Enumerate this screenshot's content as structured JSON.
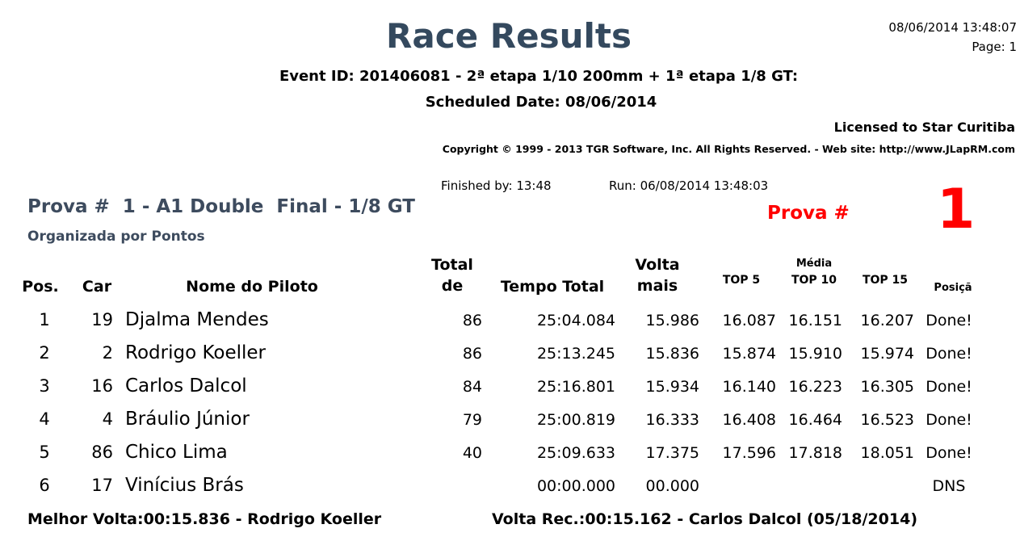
{
  "header": {
    "title": "Race Results",
    "datetime": "08/06/2014 13:48:07",
    "page": "Page: 1",
    "event": "Event ID: 201406081 - 2ª etapa 1/10 200mm + 1ª etapa 1/8 GT:",
    "scheduled": "Scheduled Date: 08/06/2014",
    "licensed": "Licensed to Star Curitiba",
    "copyright": "Copyright © 1999 - 2013 TGR Software, Inc. All Rights Reserved. - Web site: http://www.JLapRM.com"
  },
  "race": {
    "finished": "Finished by: 13:48",
    "run": "Run: 06/08/2014 13:48:03",
    "title": "Prova #  1 - A1 Double  Final - 1/8 GT",
    "subtitle": "Organizada por Pontos",
    "prova_label": "Prova #",
    "prova_number": "1"
  },
  "table": {
    "group_label": "Média",
    "headers": [
      "Pos.",
      "Car",
      "Nome do Piloto",
      "Total\nde",
      "Tempo Total",
      "Volta\nmais",
      "TOP 5",
      "TOP 10",
      "TOP 15",
      "Posiçã"
    ],
    "rows": [
      [
        "1",
        "19",
        "Djalma Mendes",
        "86",
        "25:04.084",
        "15.986",
        "16.087",
        "16.151",
        "16.207",
        "Done!"
      ],
      [
        "2",
        "2",
        "Rodrigo Koeller",
        "86",
        "25:13.245",
        "15.836",
        "15.874",
        "15.910",
        "15.974",
        "Done!"
      ],
      [
        "3",
        "16",
        "Carlos Dalcol",
        "84",
        "25:16.801",
        "15.934",
        "16.140",
        "16.223",
        "16.305",
        "Done!"
      ],
      [
        "4",
        "4",
        "Bráulio Júnior",
        "79",
        "25:00.819",
        "16.333",
        "16.408",
        "16.464",
        "16.523",
        "Done!"
      ],
      [
        "5",
        "86",
        "Chico Lima",
        "40",
        "25:09.633",
        "17.375",
        "17.596",
        "17.818",
        "18.051",
        "Done!"
      ],
      [
        "6",
        "17",
        "Vinícius Brás",
        null,
        "00:00.000",
        "00.000",
        null,
        null,
        null,
        "DNS"
      ]
    ]
  },
  "footer": {
    "best_lap": "Melhor Volta:00:15.836 - Rodrigo Koeller",
    "record": "Volta Rec.:00:15.162 - Carlos Dalcol (05/18/2014)"
  }
}
